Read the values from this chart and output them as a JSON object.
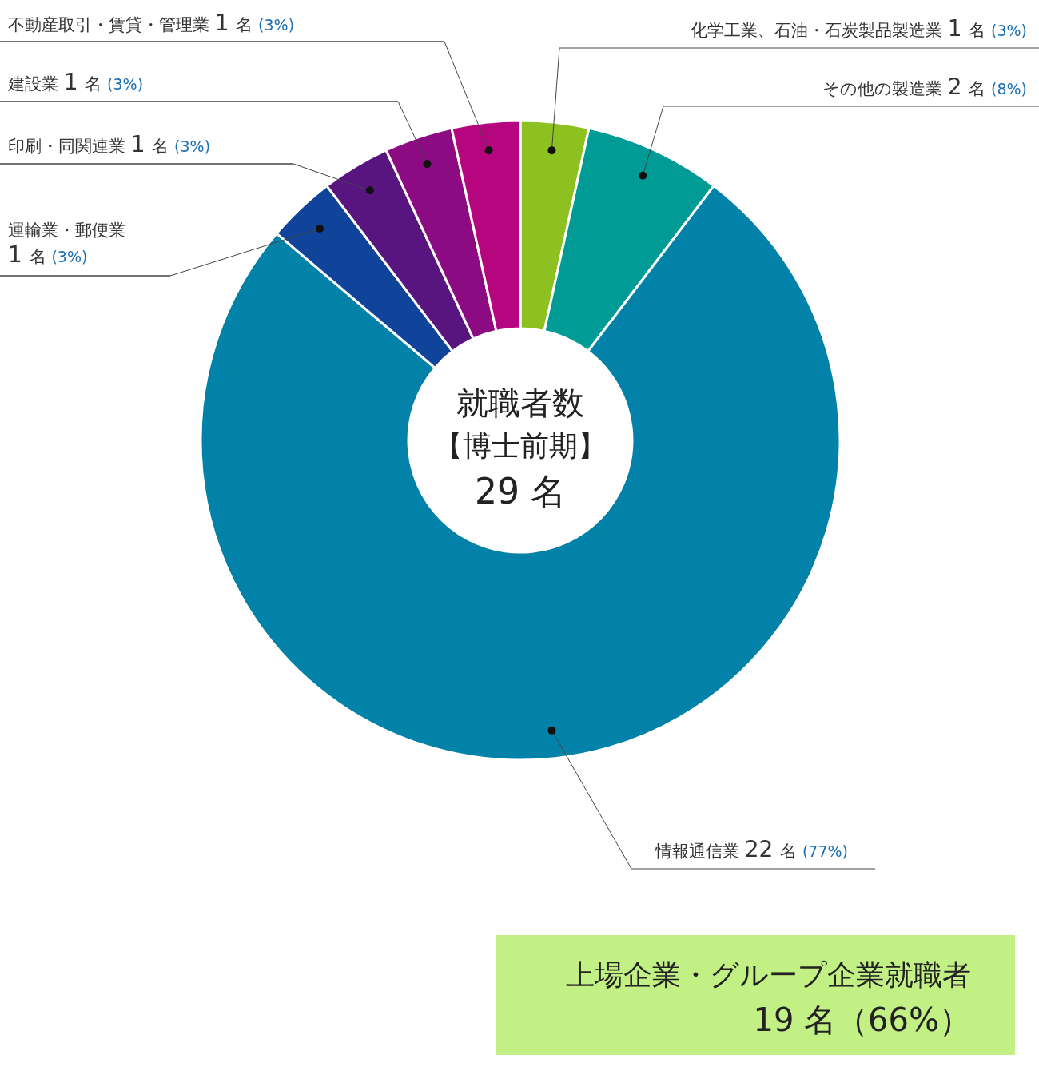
{
  "chart_data": {
    "type": "donut",
    "categories": [
      "化学工業、石油・石炭製品製造業",
      "その他の製造業",
      "情報通信業",
      "運輸業・郵便業",
      "印刷・同関連業",
      "建設業",
      "不動産取引・賃貸・管理業"
    ],
    "values": [
      1,
      2,
      22,
      1,
      1,
      1,
      1
    ],
    "colors": [
      "#8dc021",
      "#009b94",
      "#0282a8",
      "#10449a",
      "#581580",
      "#8c0a82",
      "#b5067f"
    ],
    "value_labels": [
      "1 名 (3%)",
      "2 名 (8%)",
      "22 名 (77%)",
      "1 名 (3%)",
      "1 名 (3%)",
      "1 名 (3%)",
      "1 名 (3%)"
    ],
    "annotations": [
      "就職者数",
      "【博士前期】",
      "29 名",
      "上場企業・グループ企業就職者",
      "19 名（66%）"
    ]
  }
}
